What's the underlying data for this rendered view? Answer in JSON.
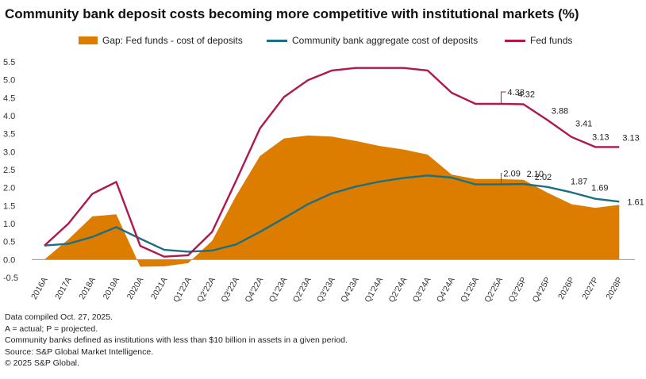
{
  "title": "Community bank deposit costs becoming more competitive with institutional markets (%)",
  "legend": {
    "gap": "Gap: Fed funds - cost of deposits",
    "community": "Community bank aggregate cost of deposits",
    "fed": "Fed funds"
  },
  "colors": {
    "gap": "#dc7d00",
    "community": "#1b6f84",
    "fed": "#b0174c",
    "axis": "#999999"
  },
  "chart_data": {
    "type": "line",
    "title": "Community bank deposit costs becoming more competitive with institutional markets (%)",
    "xlabel": "",
    "ylabel": "",
    "ylim": [
      -0.5,
      5.5
    ],
    "yticks": [
      "-0.5",
      "0.0",
      "0.5",
      "1.0",
      "1.5",
      "2.0",
      "2.5",
      "3.0",
      "3.5",
      "4.0",
      "4.5",
      "5.0",
      "5.5"
    ],
    "categories": [
      "2016A",
      "2017A",
      "2018A",
      "2019A",
      "2020A",
      "2021A",
      "Q1'22A",
      "Q2'22A",
      "Q3'22A",
      "Q4'22A",
      "Q1'23A",
      "Q2'23A",
      "Q3'23A",
      "Q4'23A",
      "Q1'24A",
      "Q2'24A",
      "Q3'24A",
      "Q4'24A",
      "Q1'25A",
      "Q2'25A",
      "Q3'25P",
      "Q4'25P",
      "2026P",
      "2027P",
      "2028P"
    ],
    "series": [
      {
        "name": "Fed funds",
        "type": "line",
        "values": [
          0.39,
          1.0,
          1.83,
          2.16,
          0.38,
          0.08,
          0.12,
          0.77,
          2.19,
          3.65,
          4.52,
          4.99,
          5.26,
          5.33,
          5.33,
          5.33,
          5.26,
          4.64,
          4.33,
          4.33,
          4.32,
          3.88,
          3.41,
          3.13,
          3.13
        ]
      },
      {
        "name": "Community bank aggregate cost of deposits",
        "type": "line",
        "values": [
          0.39,
          0.44,
          0.63,
          0.9,
          0.58,
          0.27,
          0.22,
          0.25,
          0.42,
          0.77,
          1.15,
          1.54,
          1.84,
          2.03,
          2.17,
          2.27,
          2.34,
          2.28,
          2.09,
          2.09,
          2.1,
          2.02,
          1.87,
          1.69,
          1.61
        ]
      },
      {
        "name": "Gap: Fed funds - cost of deposits",
        "type": "area",
        "values": [
          0.0,
          0.56,
          1.2,
          1.26,
          -0.2,
          -0.19,
          -0.1,
          0.52,
          1.77,
          2.88,
          3.37,
          3.45,
          3.42,
          3.3,
          3.16,
          3.06,
          2.92,
          2.36,
          2.24,
          2.24,
          2.22,
          1.86,
          1.54,
          1.44,
          1.52
        ]
      }
    ],
    "annotations": [
      {
        "label": "4.33",
        "series": "Fed funds",
        "category": "Q2'25A",
        "value": 4.33
      },
      {
        "label": "4.32",
        "series": "Fed funds",
        "category": "Q3'25P",
        "value": 4.32
      },
      {
        "label": "3.88",
        "series": "Fed funds",
        "category": "Q4'25P",
        "value": 3.88
      },
      {
        "label": "3.41",
        "series": "Fed funds",
        "category": "2026P",
        "value": 3.41
      },
      {
        "label": "3.13",
        "series": "Fed funds",
        "category": "2027P",
        "value": 3.13
      },
      {
        "label": "3.13",
        "series": "Fed funds",
        "category": "2028P",
        "value": 3.13
      },
      {
        "label": "2.09",
        "series": "Community bank aggregate cost of deposits",
        "category": "Q2'25A",
        "value": 2.09
      },
      {
        "label": "2.10",
        "series": "Community bank aggregate cost of deposits",
        "category": "Q3'25P",
        "value": 2.1
      },
      {
        "label": "2.02",
        "series": "Community bank aggregate cost of deposits",
        "category": "Q4'25P",
        "value": 2.02
      },
      {
        "label": "1.87",
        "series": "Community bank aggregate cost of deposits",
        "category": "2026P",
        "value": 1.87
      },
      {
        "label": "1.69",
        "series": "Community bank aggregate cost of deposits",
        "category": "2027P",
        "value": 1.69
      },
      {
        "label": "1.61",
        "series": "Community bank aggregate cost of deposits",
        "category": "2028P",
        "value": 1.61
      }
    ]
  },
  "notes": [
    "Data compiled Oct. 27, 2025.",
    "A = actual; P = projected.",
    "Community banks defined as institutions with less than $10 billion in assets in a given period.",
    "Source: S&P Global Market Intelligence.",
    "© 2025 S&P Global."
  ]
}
